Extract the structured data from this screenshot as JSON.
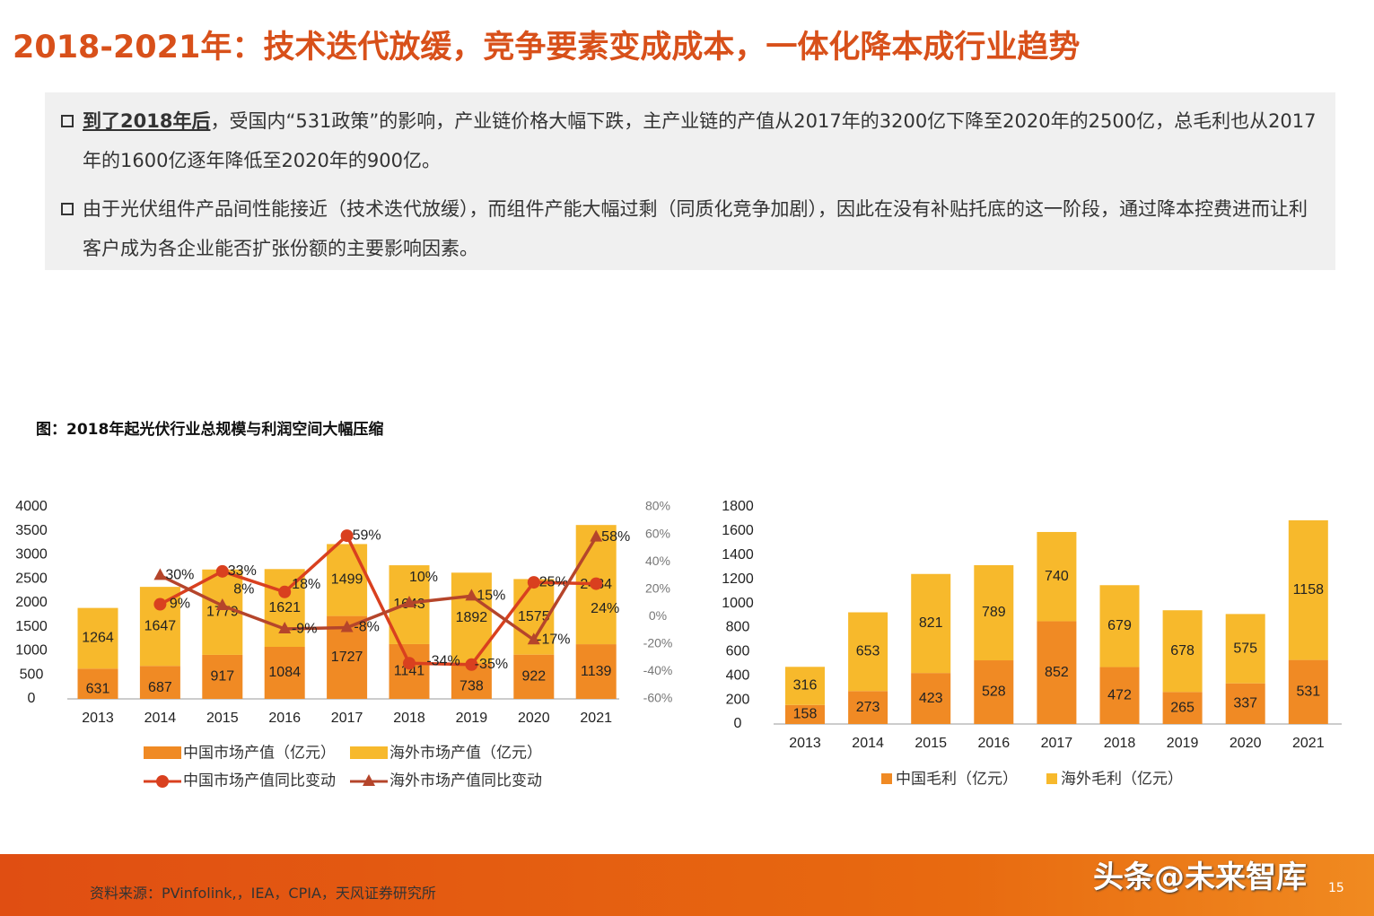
{
  "title": "2018-2021年：技术迭代放缓，竞争要素变成成本，一体化降本成行业趋势",
  "bullets": [
    {
      "bold": "到了2018年后",
      "text": "，受国内“531政策”的影响，产业链价格大幅下跌，主产业链的产值从2017年的3200亿下降至2020年的2500亿，总毛利也从2017年的1600亿逐年降低至2020年的900亿。"
    },
    {
      "bold": "",
      "text": "由于光伏组件产品间性能接近（技术迭代放缓），而组件产能大幅过剩（同质化竞争加剧），因此在没有补贴托底的这一阶段，通过降本控费进而让利客户成为各企业能否扩张份额的主要影响因素。"
    }
  ],
  "caption": "图：2018年起光伏行业总规模与利润空间大幅压缩",
  "source": "资料来源：PVinfolink,，IEA，CPIA，天风证券研究所",
  "watermark": "头条@未来智库",
  "page_number": "15",
  "colors": {
    "title": "#d8501a",
    "china": "#f08a24",
    "overseas": "#f7b92c",
    "line": "#d9401f",
    "line2": "#b5452b"
  },
  "chart_data": [
    {
      "type": "bar+line",
      "stacked": true,
      "categories": [
        "2013",
        "2014",
        "2015",
        "2016",
        "2017",
        "2018",
        "2019",
        "2020",
        "2021"
      ],
      "ylim": [
        0,
        4000
      ],
      "yticks": [
        "0",
        "500",
        "1000",
        "1500",
        "2000",
        "2500",
        "3000",
        "3500",
        "4000"
      ],
      "y2lim": [
        -60,
        80
      ],
      "y2ticks": [
        "-60%",
        "-40%",
        "-20%",
        "0%",
        "20%",
        "40%",
        "60%",
        "80%"
      ],
      "series": [
        {
          "name": "中国市场产值（亿元）",
          "kind": "bar",
          "values": [
            631,
            687,
            917,
            1084,
            1727,
            1141,
            738,
            922,
            1139
          ]
        },
        {
          "name": "海外市场产值（亿元）",
          "kind": "bar",
          "values": [
            1264,
            1647,
            1779,
            1621,
            1499,
            1643,
            1892,
            1575,
            2484
          ]
        },
        {
          "name": "中国市场产值同比变动",
          "kind": "line",
          "marker": "circle",
          "values": [
            null,
            9,
            33,
            18,
            59,
            -34,
            -35,
            25,
            24
          ]
        },
        {
          "name": "海外市场产值同比变动",
          "kind": "line",
          "marker": "triangle",
          "values": [
            null,
            30,
            8,
            -9,
            -8,
            10,
            15,
            -17,
            58
          ]
        }
      ],
      "legend": "bottom"
    },
    {
      "type": "bar",
      "stacked": true,
      "categories": [
        "2013",
        "2014",
        "2015",
        "2016",
        "2017",
        "2018",
        "2019",
        "2020",
        "2021"
      ],
      "ylim": [
        0,
        1800
      ],
      "yticks": [
        "0",
        "200",
        "400",
        "600",
        "800",
        "1000",
        "1200",
        "1400",
        "1600",
        "1800"
      ],
      "series": [
        {
          "name": "中国毛利（亿元）",
          "values": [
            158,
            273,
            423,
            528,
            852,
            472,
            265,
            337,
            531
          ]
        },
        {
          "name": "海外毛利（亿元）",
          "values": [
            316,
            653,
            821,
            789,
            740,
            679,
            678,
            575,
            1158
          ]
        }
      ],
      "legend": "bottom"
    }
  ]
}
